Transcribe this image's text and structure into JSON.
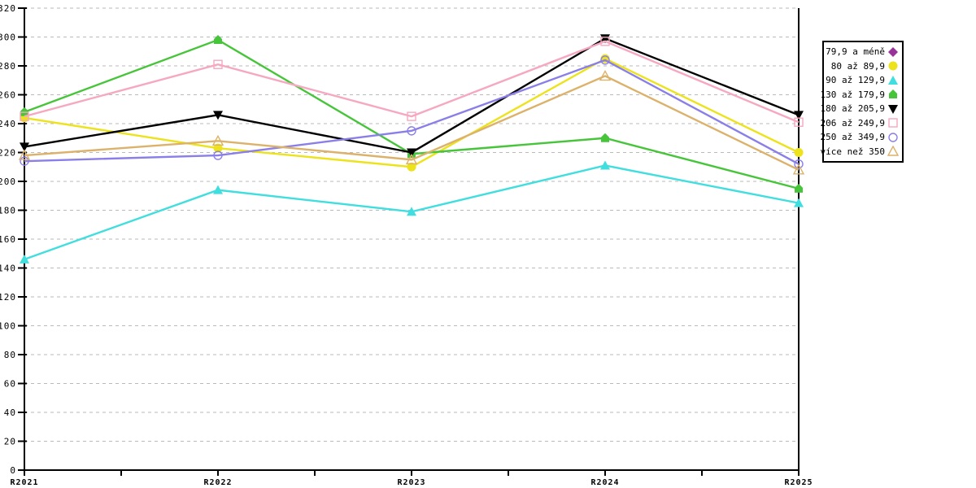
{
  "chart_data": {
    "type": "line",
    "title": "",
    "xlabel": "",
    "ylabel": "",
    "categories": [
      "R2021",
      "R2022",
      "R2023",
      "R2024",
      "R2025"
    ],
    "ylim": [
      0,
      320
    ],
    "ytick_step": 20,
    "grid": "horizontal-dashed",
    "grid_color": "#bababa",
    "axis_color": "#000000",
    "legend_position": "right",
    "series": [
      {
        "name": "79,9 a méně",
        "color": "#993399",
        "marker": "diamond-filled",
        "values": []
      },
      {
        "name": "80 až 89,9",
        "color": "#ece31c",
        "marker": "circle-filled",
        "values": [
          244,
          223,
          210,
          285,
          220
        ]
      },
      {
        "name": "90 až 129,9",
        "color": "#40dede",
        "marker": "triangle-filled",
        "values": [
          146,
          194,
          179,
          211,
          185
        ]
      },
      {
        "name": "130 až 179,9",
        "color": "#47c53a",
        "marker": "house-filled",
        "values": [
          248,
          298,
          219,
          230,
          195
        ]
      },
      {
        "name": "180 až 205,9",
        "color": "#000000",
        "marker": "triangle-down-filled",
        "values": [
          224,
          246,
          220,
          299,
          246
        ]
      },
      {
        "name": "206 až 249,9",
        "color": "#f6a8c0",
        "marker": "square-open",
        "values": [
          245,
          281,
          245,
          297,
          241
        ]
      },
      {
        "name": "250 až 349,9",
        "color": "#8a7fe8",
        "marker": "circle-open",
        "values": [
          214,
          218,
          235,
          284,
          212
        ]
      },
      {
        "name": "více než 350",
        "color": "#dcb26b",
        "marker": "triangle-open",
        "values": [
          218,
          228,
          215,
          273,
          208
        ]
      }
    ]
  }
}
